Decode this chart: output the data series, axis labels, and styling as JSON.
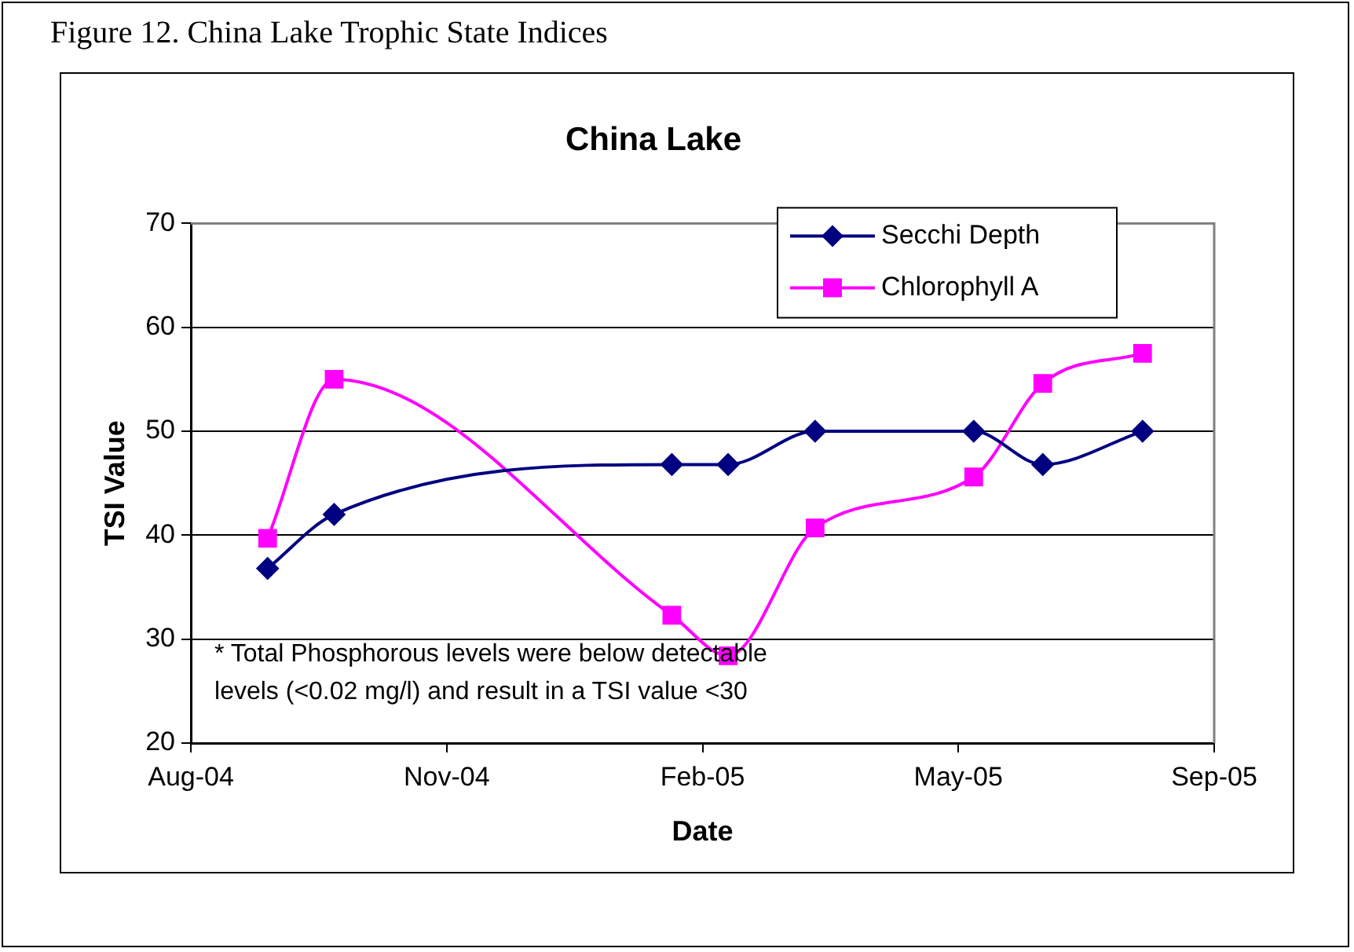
{
  "chart_data": {
    "type": "line",
    "title": "China Lake",
    "xlabel": "Date",
    "ylabel": "TSI Value",
    "annotations": [
      "Figure 12. China Lake Trophic State Indices",
      "* Total Phosphorous levels were below detectable levels (<0.02 mg/l) and result in a TSI value <30"
    ],
    "x": [
      "2004-08-31",
      "2004-09-26",
      "2005-02-05",
      "2005-02-27",
      "2005-04-02",
      "2005-06-03",
      "2005-06-30",
      "2005-08-08"
    ],
    "series": [
      {
        "name": "Secchi Depth",
        "color": "#000080",
        "marker": "diamond",
        "values": [
          36.8,
          42.0,
          46.8,
          46.8,
          50.0,
          50.0,
          46.8,
          50.0
        ]
      },
      {
        "name": "Chlorophyll A",
        "color": "#ff00ff",
        "marker": "square",
        "values": [
          39.7,
          55.0,
          32.3,
          28.4,
          40.7,
          45.6,
          54.6,
          57.5
        ]
      }
    ],
    "xlim": [
      "2004-08-01",
      "2005-09-05"
    ],
    "xticks": [
      {
        "value": "2004-08-01",
        "label": "Aug-04"
      },
      {
        "value": "2004-11-09",
        "label": "Nov-04"
      },
      {
        "value": "2005-02-17",
        "label": "Feb-05"
      },
      {
        "value": "2005-05-28",
        "label": "May-05"
      },
      {
        "value": "2005-09-05",
        "label": "Sep-05"
      }
    ],
    "ylim": [
      20,
      70
    ],
    "yticks": [
      20,
      30,
      40,
      50,
      60,
      70
    ],
    "grid": "y",
    "legend": "top right"
  }
}
